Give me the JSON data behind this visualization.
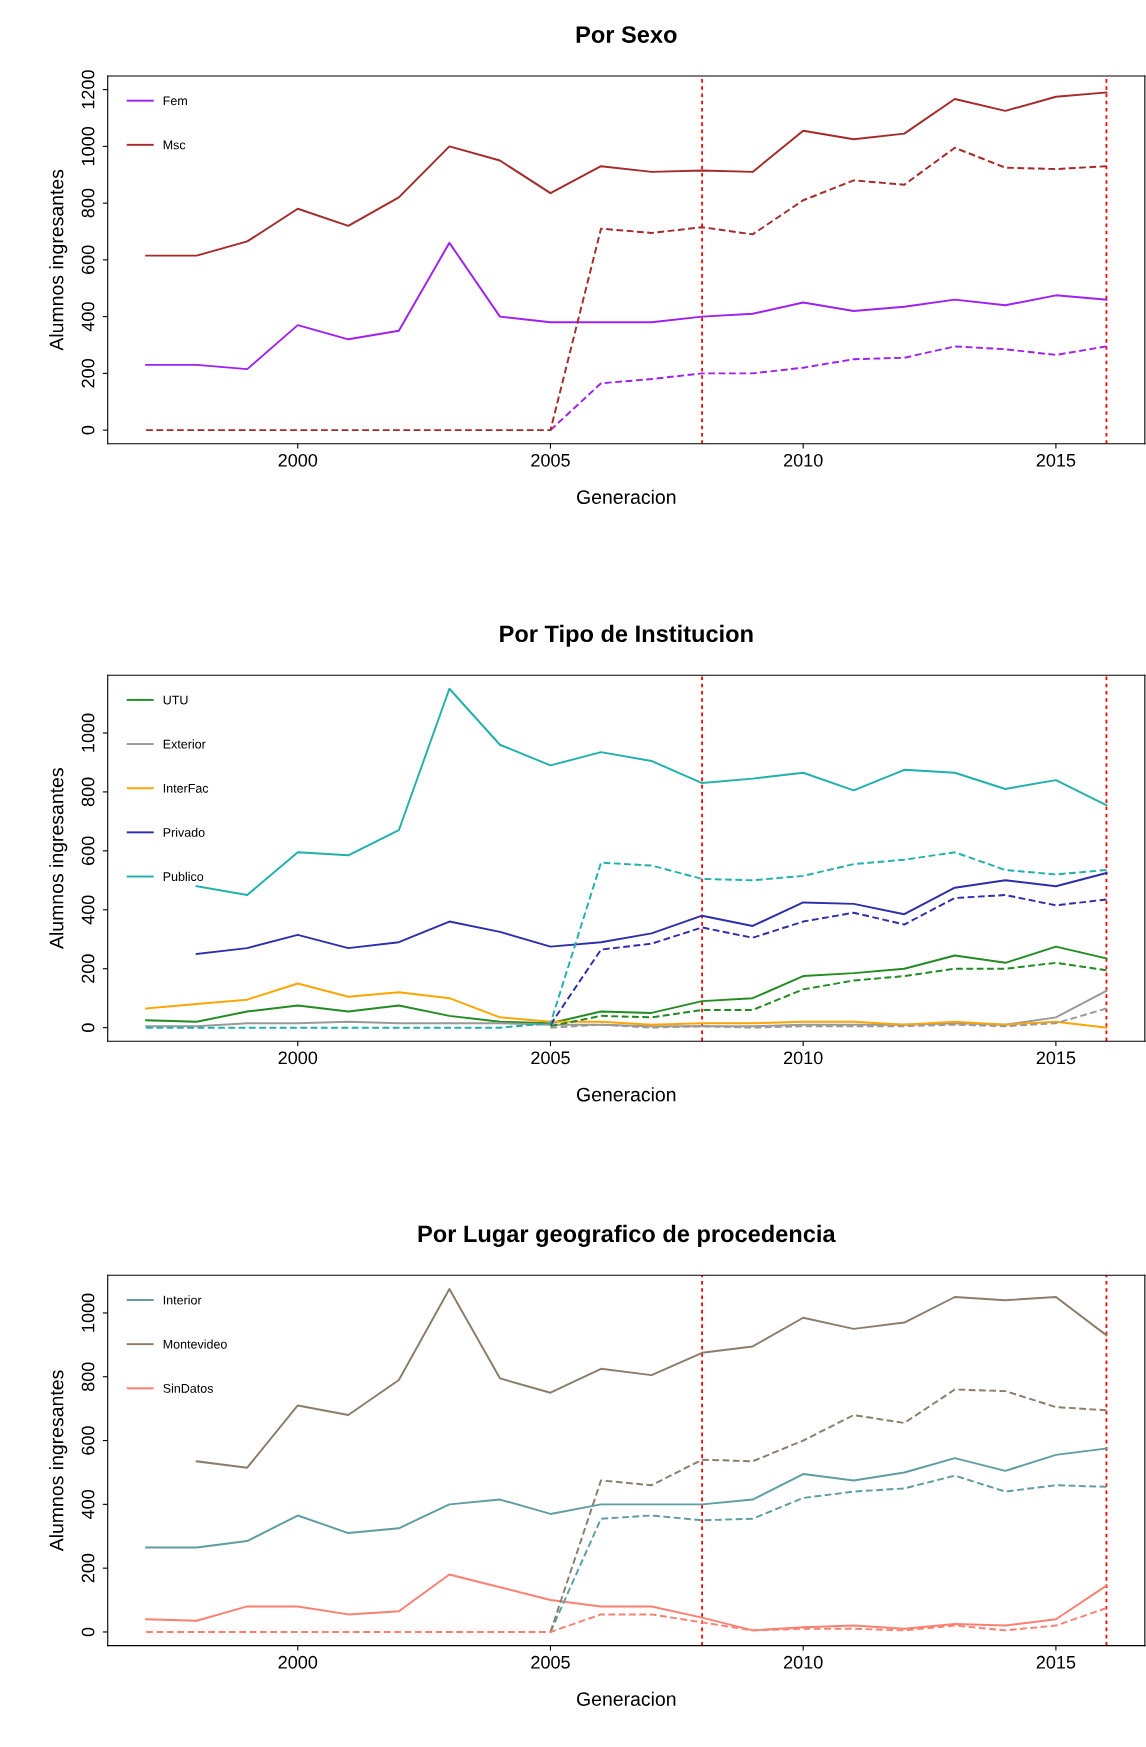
{
  "chart_data": [
    {
      "type": "line",
      "title": "Por Sexo",
      "xlabel": "Generacion",
      "ylabel": "Alumnos ingresantes",
      "legend": "top left",
      "x": [
        1997,
        1998,
        1999,
        2000,
        2001,
        2002,
        2003,
        2004,
        2005,
        2006,
        2007,
        2008,
        2009,
        2010,
        2011,
        2012,
        2013,
        2014,
        2015,
        2016
      ],
      "xlim": [
        1996.24,
        2016.76
      ],
      "xticks": [
        2000,
        2005,
        2010,
        2015
      ],
      "ylim": [
        -48,
        1248
      ],
      "yticks": [
        0,
        200,
        400,
        600,
        800,
        1000,
        1200
      ],
      "ref_lines": [
        {
          "axis": "x",
          "value": 2008,
          "color": "#ff0000",
          "line_style": "dotted"
        },
        {
          "axis": "x",
          "value": 2016,
          "color": "#ff0000",
          "line_style": "dotted"
        }
      ],
      "series": [
        {
          "name": "Fem",
          "color": "#a020f0",
          "line_style": "solid",
          "values": [
            230,
            230,
            215,
            370,
            320,
            350,
            660,
            400,
            380,
            380,
            380,
            400,
            410,
            450,
            420,
            435,
            460,
            440,
            475,
            460
          ]
        },
        {
          "name": "Msc",
          "color": "#a52a2a",
          "line_style": "solid",
          "values": [
            615,
            615,
            665,
            780,
            720,
            820,
            1000,
            950,
            835,
            930,
            910,
            915,
            910,
            1055,
            1025,
            1045,
            1167,
            1125,
            1175,
            1190
          ]
        },
        {
          "color": "#a020f0",
          "line_style": "dashed",
          "values": [
            null,
            null,
            null,
            null,
            null,
            null,
            null,
            null,
            0,
            165,
            180,
            200,
            200,
            220,
            250,
            255,
            295,
            285,
            265,
            295
          ]
        },
        {
          "color": "#a52a2a",
          "line_style": "dashed",
          "values": [
            0,
            0,
            0,
            0,
            0,
            0,
            0,
            0,
            0,
            710,
            695,
            715,
            690,
            810,
            880,
            865,
            995,
            925,
            920,
            930
          ]
        }
      ]
    },
    {
      "type": "line",
      "title": "Por Tipo de Institucion",
      "xlabel": "Generacion",
      "ylabel": "Alumnos ingresantes",
      "legend": "top left",
      "x": [
        1997,
        1998,
        1999,
        2000,
        2001,
        2002,
        2003,
        2004,
        2005,
        2006,
        2007,
        2008,
        2009,
        2010,
        2011,
        2012,
        2013,
        2014,
        2015,
        2016
      ],
      "xlim": [
        1996.24,
        2016.76
      ],
      "xticks": [
        2000,
        2005,
        2010,
        2015
      ],
      "ylim": [
        -46,
        1196
      ],
      "yticks": [
        0,
        200,
        400,
        600,
        800,
        1000
      ],
      "ref_lines": [
        {
          "axis": "x",
          "value": 2008,
          "color": "#ff0000",
          "line_style": "dotted"
        },
        {
          "axis": "x",
          "value": 2016,
          "color": "#ff0000",
          "line_style": "dotted"
        }
      ],
      "series": [
        {
          "name": "UTU",
          "color": "#228b22",
          "line_style": "solid",
          "values": [
            25,
            20,
            55,
            75,
            55,
            75,
            40,
            20,
            15,
            55,
            50,
            90,
            100,
            175,
            185,
            200,
            245,
            220,
            275,
            235
          ]
        },
        {
          "name": "Exterior",
          "color": "#999999",
          "line_style": "solid",
          "values": [
            5,
            5,
            15,
            15,
            20,
            15,
            15,
            15,
            10,
            10,
            5,
            5,
            5,
            10,
            10,
            10,
            15,
            10,
            35,
            125
          ]
        },
        {
          "name": "InterFac",
          "color": "#ffa500",
          "line_style": "solid",
          "values": [
            65,
            80,
            95,
            150,
            105,
            120,
            100,
            35,
            20,
            20,
            10,
            15,
            15,
            20,
            20,
            10,
            20,
            10,
            20,
            0
          ]
        },
        {
          "name": "Privado",
          "color": "#2e2eaa",
          "line_style": "solid",
          "values": [
            null,
            250,
            270,
            315,
            270,
            290,
            360,
            325,
            275,
            290,
            320,
            380,
            345,
            425,
            420,
            385,
            475,
            500,
            480,
            525
          ]
        },
        {
          "name": "Publico",
          "color": "#20b2aa",
          "line_style": "solid",
          "values": [
            null,
            480,
            450,
            595,
            585,
            670,
            1150,
            960,
            890,
            935,
            905,
            830,
            845,
            865,
            805,
            875,
            865,
            810,
            840,
            755
          ]
        },
        {
          "color": "#228b22",
          "line_style": "dashed",
          "values": [
            null,
            null,
            null,
            null,
            null,
            null,
            null,
            null,
            5,
            40,
            35,
            60,
            60,
            130,
            160,
            175,
            200,
            200,
            220,
            195
          ]
        },
        {
          "color": "#999999",
          "line_style": "dashed",
          "values": [
            null,
            null,
            null,
            null,
            null,
            null,
            null,
            null,
            0,
            10,
            0,
            5,
            0,
            5,
            5,
            5,
            10,
            5,
            15,
            65
          ]
        },
        {
          "color": "#2e2eaa",
          "line_style": "dashed",
          "values": [
            null,
            null,
            null,
            null,
            null,
            null,
            null,
            null,
            10,
            265,
            285,
            340,
            305,
            360,
            390,
            350,
            440,
            450,
            415,
            435
          ]
        },
        {
          "color": "#20b2aa",
          "line_style": "dashed",
          "values": [
            0,
            0,
            0,
            0,
            0,
            0,
            0,
            0,
            15,
            560,
            550,
            505,
            500,
            515,
            555,
            570,
            595,
            535,
            520,
            535
          ]
        }
      ]
    },
    {
      "type": "line",
      "title": "Por Lugar geografico de procedencia",
      "xlabel": "Generacion",
      "ylabel": "Alumnos ingresantes",
      "legend": "top left",
      "x": [
        1997,
        1998,
        1999,
        2000,
        2001,
        2002,
        2003,
        2004,
        2005,
        2006,
        2007,
        2008,
        2009,
        2010,
        2011,
        2012,
        2013,
        2014,
        2015,
        2016
      ],
      "xlim": [
        1996.24,
        2016.76
      ],
      "xticks": [
        2000,
        2005,
        2010,
        2015
      ],
      "ylim": [
        -43,
        1118
      ],
      "yticks": [
        0,
        200,
        400,
        600,
        800,
        1000
      ],
      "ref_lines": [
        {
          "axis": "x",
          "value": 2008,
          "color": "#ff0000",
          "line_style": "dotted"
        },
        {
          "axis": "x",
          "value": 2016,
          "color": "#ff0000",
          "line_style": "dotted"
        }
      ],
      "series": [
        {
          "name": "Interior",
          "color": "#5f9ea0",
          "line_style": "solid",
          "values": [
            265,
            265,
            285,
            365,
            310,
            325,
            400,
            415,
            370,
            400,
            400,
            400,
            415,
            495,
            475,
            500,
            545,
            505,
            555,
            575
          ]
        },
        {
          "name": "Montevideo",
          "color": "#8b7d6b",
          "line_style": "solid",
          "values": [
            null,
            535,
            515,
            710,
            680,
            790,
            1075,
            795,
            750,
            825,
            805,
            875,
            895,
            985,
            950,
            970,
            1050,
            1040,
            1050,
            930
          ]
        },
        {
          "name": "SinDatos",
          "color": "#fa8072",
          "line_style": "solid",
          "values": [
            40,
            35,
            80,
            80,
            55,
            65,
            180,
            140,
            100,
            80,
            80,
            45,
            5,
            15,
            20,
            10,
            25,
            20,
            40,
            145
          ]
        },
        {
          "color": "#5f9ea0",
          "line_style": "dashed",
          "values": [
            null,
            null,
            null,
            null,
            null,
            null,
            null,
            null,
            0,
            355,
            365,
            350,
            355,
            420,
            440,
            450,
            490,
            440,
            460,
            455
          ]
        },
        {
          "color": "#8b7d6b",
          "line_style": "dashed",
          "values": [
            null,
            null,
            null,
            null,
            null,
            null,
            null,
            null,
            0,
            475,
            460,
            540,
            535,
            600,
            680,
            655,
            760,
            755,
            705,
            695
          ]
        },
        {
          "color": "#fa8072",
          "line_style": "dashed",
          "values": [
            0,
            0,
            0,
            0,
            0,
            0,
            0,
            0,
            0,
            55,
            55,
            30,
            5,
            10,
            10,
            5,
            20,
            5,
            20,
            75
          ]
        }
      ]
    }
  ]
}
